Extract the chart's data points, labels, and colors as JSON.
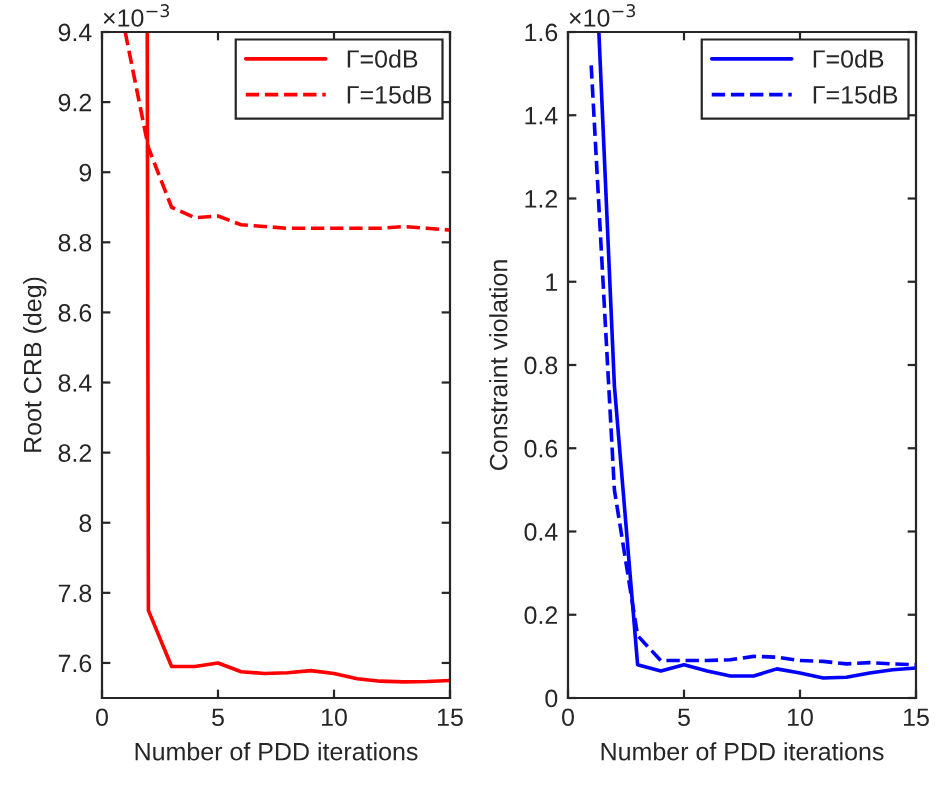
{
  "chart_data": [
    {
      "type": "line",
      "xlabel": "Number of PDD iterations",
      "ylabel": "Root CRB (deg)",
      "xlim": [
        0,
        15
      ],
      "xticks": [
        0,
        5,
        10,
        15
      ],
      "ylim": [
        7.5,
        9.4
      ],
      "yticks": [
        7.6,
        7.8,
        8,
        8.2,
        8.4,
        8.6,
        8.8,
        9,
        9.2,
        9.4
      ],
      "legend": "top right",
      "grid": false,
      "annotations": [
        "×10$^{−3}$"
      ],
      "series": [
        {
          "name": "Γ=0dB",
          "color": "#ff0000",
          "line_style": "solid",
          "x": [
            1.95,
            2,
            3,
            4,
            5,
            6,
            7,
            8,
            9,
            10,
            11,
            12,
            13,
            14,
            15
          ],
          "values": [
            9.4,
            7.75,
            7.59,
            7.59,
            7.6,
            7.575,
            7.57,
            7.572,
            7.578,
            7.57,
            7.555,
            7.548,
            7.546,
            7.547,
            7.55
          ]
        },
        {
          "name": "Γ=15dB",
          "color": "#ff0000",
          "line_style": "dashed",
          "x": [
            1,
            2,
            3,
            4,
            5,
            6,
            7,
            8,
            9,
            10,
            11,
            12,
            13,
            14,
            15
          ],
          "values": [
            9.4,
            9.07,
            8.9,
            8.87,
            8.875,
            8.85,
            8.845,
            8.84,
            8.84,
            8.84,
            8.84,
            8.84,
            8.845,
            8.84,
            8.835
          ]
        }
      ]
    },
    {
      "type": "line",
      "xlabel": "Number of PDD iterations",
      "ylabel": "Constraint violation",
      "xlim": [
        0,
        15
      ],
      "xticks": [
        0,
        5,
        10,
        15
      ],
      "ylim": [
        0,
        1.6
      ],
      "yticks": [
        0,
        0.2,
        0.4,
        0.6,
        0.8,
        1,
        1.2,
        1.4,
        1.6
      ],
      "legend": "top right",
      "grid": false,
      "annotations": [
        "×10$^{−3}$"
      ],
      "series": [
        {
          "name": "Γ=0dB",
          "color": "#0000ff",
          "line_style": "solid",
          "x": [
            1.33,
            2,
            3,
            4,
            5,
            6,
            7,
            8,
            9,
            10,
            11,
            12,
            13,
            14,
            15
          ],
          "values": [
            1.6,
            0.75,
            0.08,
            0.065,
            0.08,
            0.065,
            0.053,
            0.053,
            0.07,
            0.06,
            0.048,
            0.05,
            0.06,
            0.068,
            0.072
          ]
        },
        {
          "name": "Γ=15dB",
          "color": "#0000ff",
          "line_style": "dashed",
          "x": [
            1,
            2,
            3,
            4,
            5,
            6,
            7,
            8,
            9,
            10,
            11,
            12,
            13,
            14,
            15
          ],
          "values": [
            1.52,
            0.5,
            0.15,
            0.09,
            0.09,
            0.09,
            0.092,
            0.1,
            0.098,
            0.09,
            0.088,
            0.082,
            0.085,
            0.082,
            0.08
          ]
        }
      ]
    }
  ]
}
